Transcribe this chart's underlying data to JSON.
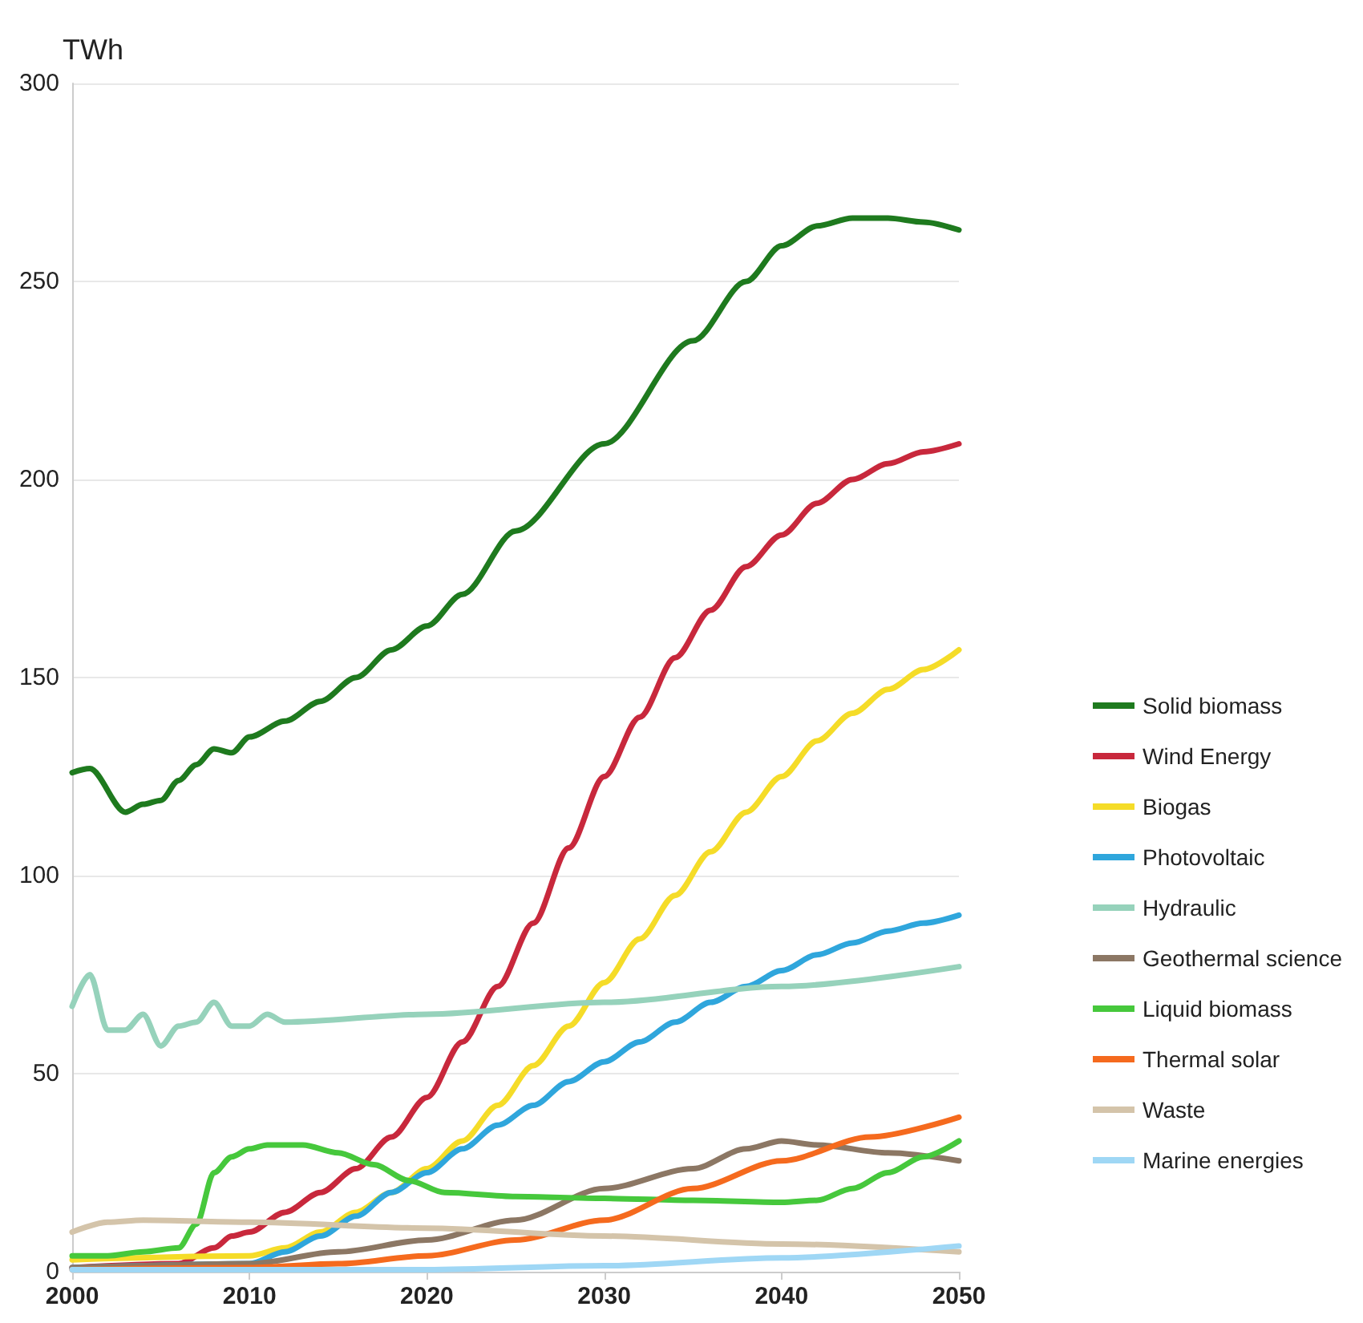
{
  "chart_data": {
    "type": "line",
    "ylabel": "TWh",
    "xlim": [
      2000,
      2050
    ],
    "xticks": [
      2000,
      2010,
      2020,
      2030,
      2040,
      2050
    ],
    "ylim": [
      0,
      300
    ],
    "yticks": [
      0,
      50,
      100,
      150,
      200,
      250,
      300
    ],
    "grid": "y",
    "legend": "right",
    "marker": "none",
    "line_style": "solid",
    "series": [
      {
        "name": "Solid biomass",
        "color": "#1e7a1e",
        "x": [
          2000,
          2001,
          2003,
          2004,
          2005,
          2006,
          2007,
          2008,
          2009,
          2010,
          2012,
          2014,
          2016,
          2018,
          2020,
          2022,
          2025,
          2030,
          2035,
          2038,
          2040,
          2042,
          2044,
          2046,
          2048,
          2050
        ],
        "values": [
          126,
          127,
          116,
          118,
          119,
          124,
          128,
          132,
          131,
          135,
          139,
          144,
          150,
          157,
          163,
          171,
          187,
          209,
          235,
          250,
          259,
          264,
          266,
          266,
          265,
          263
        ]
      },
      {
        "name": "Wind Energy",
        "color": "#c8283c",
        "x": [
          2000,
          2006,
          2008,
          2009,
          2010,
          2012,
          2014,
          2016,
          2018,
          2020,
          2022,
          2024,
          2026,
          2028,
          2030,
          2032,
          2034,
          2036,
          2038,
          2040,
          2042,
          2044,
          2046,
          2048,
          2050
        ],
        "values": [
          1,
          2,
          6,
          9,
          10,
          15,
          20,
          26,
          34,
          44,
          58,
          72,
          88,
          107,
          125,
          140,
          155,
          167,
          178,
          186,
          194,
          200,
          204,
          207,
          209
        ]
      },
      {
        "name": "Biogas",
        "color": "#f5dc28",
        "x": [
          2000,
          2010,
          2012,
          2014,
          2016,
          2018,
          2020,
          2022,
          2024,
          2026,
          2028,
          2030,
          2032,
          2034,
          2036,
          2038,
          2040,
          2042,
          2044,
          2046,
          2048,
          2050
        ],
        "values": [
          3,
          4,
          6,
          10,
          15,
          20,
          26,
          33,
          42,
          52,
          62,
          73,
          84,
          95,
          106,
          116,
          125,
          134,
          141,
          147,
          152,
          157
        ]
      },
      {
        "name": "Photovoltaic",
        "color": "#2fa6dc",
        "x": [
          2000,
          2010,
          2012,
          2014,
          2016,
          2018,
          2020,
          2022,
          2024,
          2026,
          2028,
          2030,
          2032,
          2034,
          2036,
          2038,
          2040,
          2042,
          2044,
          2046,
          2048,
          2050
        ],
        "values": [
          1,
          2,
          5,
          9,
          14,
          20,
          25,
          31,
          37,
          42,
          48,
          53,
          58,
          63,
          68,
          72,
          76,
          80,
          83,
          86,
          88,
          90
        ]
      },
      {
        "name": "Hydraulic",
        "color": "#96d2bb",
        "x": [
          2000,
          2001,
          2002,
          2003,
          2004,
          2005,
          2006,
          2007,
          2008,
          2009,
          2010,
          2011,
          2012,
          2020,
          2030,
          2040,
          2050
        ],
        "values": [
          67,
          75,
          61,
          61,
          65,
          57,
          62,
          63,
          68,
          62,
          62,
          65,
          63,
          65,
          68,
          72,
          77
        ]
      },
      {
        "name": "Geothermal science",
        "color": "#8c7764",
        "x": [
          2000,
          2010,
          2015,
          2020,
          2025,
          2030,
          2035,
          2038,
          2040,
          2042,
          2046,
          2050
        ],
        "values": [
          1,
          2,
          5,
          8,
          13,
          21,
          26,
          31,
          33,
          32,
          30,
          28
        ]
      },
      {
        "name": "Liquid biomass",
        "color": "#46c83c",
        "x": [
          2000,
          2002,
          2004,
          2006,
          2007,
          2008,
          2009,
          2010,
          2011,
          2013,
          2015,
          2017,
          2019,
          2021,
          2025,
          2030,
          2035,
          2040,
          2042,
          2044,
          2046,
          2048,
          2050
        ],
        "values": [
          4,
          4,
          5,
          6,
          12,
          25,
          29,
          31,
          32,
          32,
          30,
          27,
          23,
          20,
          19,
          18.5,
          18,
          17.5,
          18,
          21,
          25,
          29,
          33
        ]
      },
      {
        "name": "Thermal solar",
        "color": "#f56a1e",
        "x": [
          2000,
          2010,
          2015,
          2020,
          2025,
          2030,
          2035,
          2040,
          2045,
          2050
        ],
        "values": [
          0.5,
          1,
          2,
          4,
          8,
          13,
          21,
          28,
          34,
          39
        ]
      },
      {
        "name": "Waste",
        "color": "#d4c4aa",
        "x": [
          2000,
          2002,
          2004,
          2010,
          2020,
          2030,
          2040,
          2050
        ],
        "values": [
          10,
          12.5,
          13,
          12.5,
          11,
          9,
          7,
          5
        ]
      },
      {
        "name": "Marine energies",
        "color": "#9fd7f5",
        "x": [
          2000,
          2020,
          2030,
          2040,
          2050
        ],
        "values": [
          0.5,
          0.5,
          1.5,
          3.5,
          6.5
        ]
      }
    ]
  }
}
